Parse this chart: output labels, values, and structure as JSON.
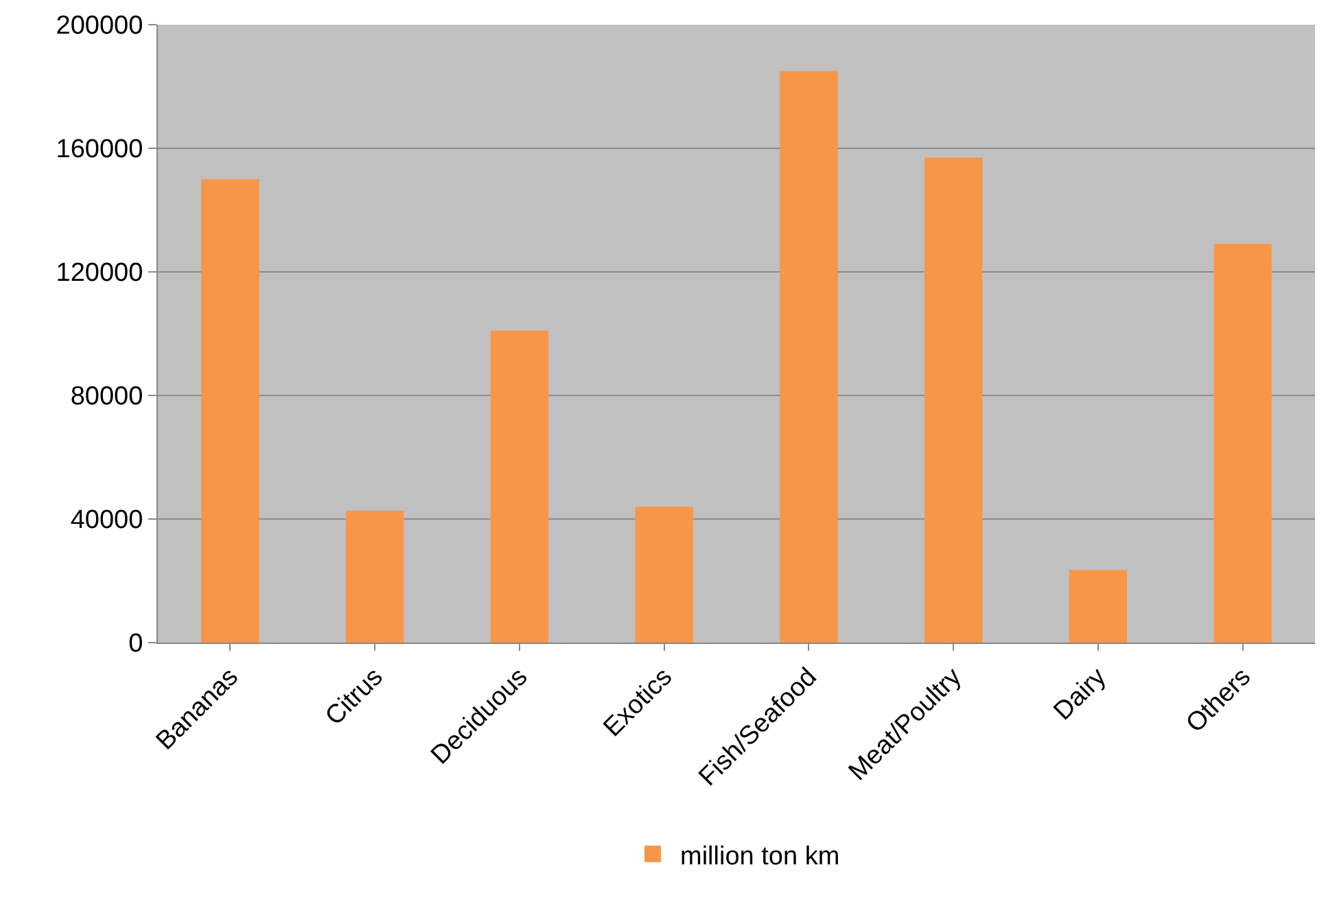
{
  "chart_data": {
    "type": "bar",
    "categories": [
      "Bananas",
      "Citrus",
      "Deciduous",
      "Exotics",
      "Fish/Seafood",
      "Meat/Poultry",
      "Dairy",
      "Others"
    ],
    "series": [
      {
        "name": "million ton km",
        "color": "#f79646",
        "values": [
          150000,
          42700,
          101000,
          44000,
          185000,
          157000,
          23500,
          129000
        ]
      }
    ],
    "ylim": [
      0,
      200000
    ],
    "yticks": [
      0,
      40000,
      80000,
      120000,
      160000,
      200000
    ],
    "grid": "y",
    "legend": "bottom"
  }
}
